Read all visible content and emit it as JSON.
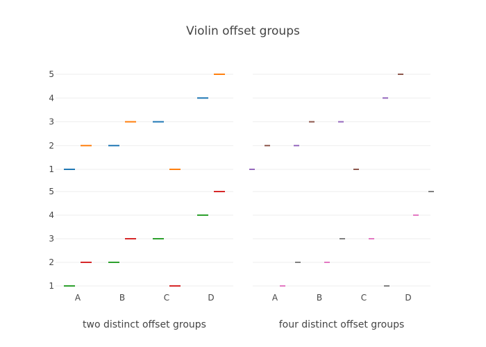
{
  "chart_data": {
    "type": "violin",
    "title": "Violin offset groups",
    "colors": {
      "blue": "#1f77b4",
      "orange": "#ff7f0e",
      "green": "#2ca02c",
      "red": "#d62728",
      "purple": "#9467bd",
      "brown": "#8c564b",
      "pink": "#e377c2",
      "gray": "#7f7f7f"
    },
    "panels": [
      {
        "xlabel": "two distinct offset groups",
        "categories": [
          "A",
          "B",
          "C",
          "D"
        ],
        "rows": [
          {
            "y_ticks": [
              "1",
              "2",
              "3",
              "4",
              "5"
            ],
            "marks": [
              {
                "category": "A",
                "value": 1,
                "offset": -1,
                "color": "blue"
              },
              {
                "category": "A",
                "value": 2,
                "offset": 1,
                "color": "orange"
              },
              {
                "category": "B",
                "value": 2,
                "offset": -1,
                "color": "blue"
              },
              {
                "category": "B",
                "value": 3,
                "offset": 1,
                "color": "orange"
              },
              {
                "category": "C",
                "value": 3,
                "offset": -1,
                "color": "blue"
              },
              {
                "category": "C",
                "value": 1,
                "offset": 1,
                "color": "orange"
              },
              {
                "category": "D",
                "value": 4,
                "offset": -1,
                "color": "blue"
              },
              {
                "category": "D",
                "value": 5,
                "offset": 1,
                "color": "orange"
              }
            ]
          },
          {
            "y_ticks": [
              "1",
              "2",
              "3",
              "4",
              "5"
            ],
            "marks": [
              {
                "category": "A",
                "value": 1,
                "offset": -1,
                "color": "green"
              },
              {
                "category": "A",
                "value": 2,
                "offset": 1,
                "color": "red"
              },
              {
                "category": "B",
                "value": 2,
                "offset": -1,
                "color": "green"
              },
              {
                "category": "B",
                "value": 3,
                "offset": 1,
                "color": "red"
              },
              {
                "category": "C",
                "value": 3,
                "offset": -1,
                "color": "green"
              },
              {
                "category": "C",
                "value": 1,
                "offset": 1,
                "color": "red"
              },
              {
                "category": "D",
                "value": 4,
                "offset": -1,
                "color": "green"
              },
              {
                "category": "D",
                "value": 5,
                "offset": 1,
                "color": "red"
              }
            ]
          }
        ]
      },
      {
        "xlabel": "four distinct offset groups",
        "categories": [
          "A",
          "B",
          "C",
          "D"
        ],
        "rows": [
          {
            "marks": [
              {
                "category": "A",
                "value": 1,
                "offset": -3,
                "color": "purple"
              },
              {
                "category": "A",
                "value": 2,
                "offset": -1,
                "color": "brown"
              },
              {
                "category": "B",
                "value": 2,
                "offset": -3,
                "color": "purple"
              },
              {
                "category": "B",
                "value": 3,
                "offset": -1,
                "color": "brown"
              },
              {
                "category": "C",
                "value": 3,
                "offset": -3,
                "color": "purple"
              },
              {
                "category": "C",
                "value": 1,
                "offset": -1,
                "color": "brown"
              },
              {
                "category": "D",
                "value": 4,
                "offset": -3,
                "color": "purple"
              },
              {
                "category": "D",
                "value": 5,
                "offset": -1,
                "color": "brown"
              }
            ]
          },
          {
            "marks": [
              {
                "category": "A",
                "value": 1,
                "offset": 1,
                "color": "pink"
              },
              {
                "category": "A",
                "value": 2,
                "offset": 3,
                "color": "gray"
              },
              {
                "category": "B",
                "value": 2,
                "offset": 1,
                "color": "pink"
              },
              {
                "category": "B",
                "value": 3,
                "offset": 3,
                "color": "gray"
              },
              {
                "category": "C",
                "value": 3,
                "offset": 1,
                "color": "pink"
              },
              {
                "category": "C",
                "value": 1,
                "offset": 3,
                "color": "gray"
              },
              {
                "category": "D",
                "value": 4,
                "offset": 1,
                "color": "pink"
              },
              {
                "category": "D",
                "value": 5,
                "offset": 3,
                "color": "gray"
              }
            ]
          }
        ]
      }
    ],
    "grid": true,
    "legend": "none"
  }
}
